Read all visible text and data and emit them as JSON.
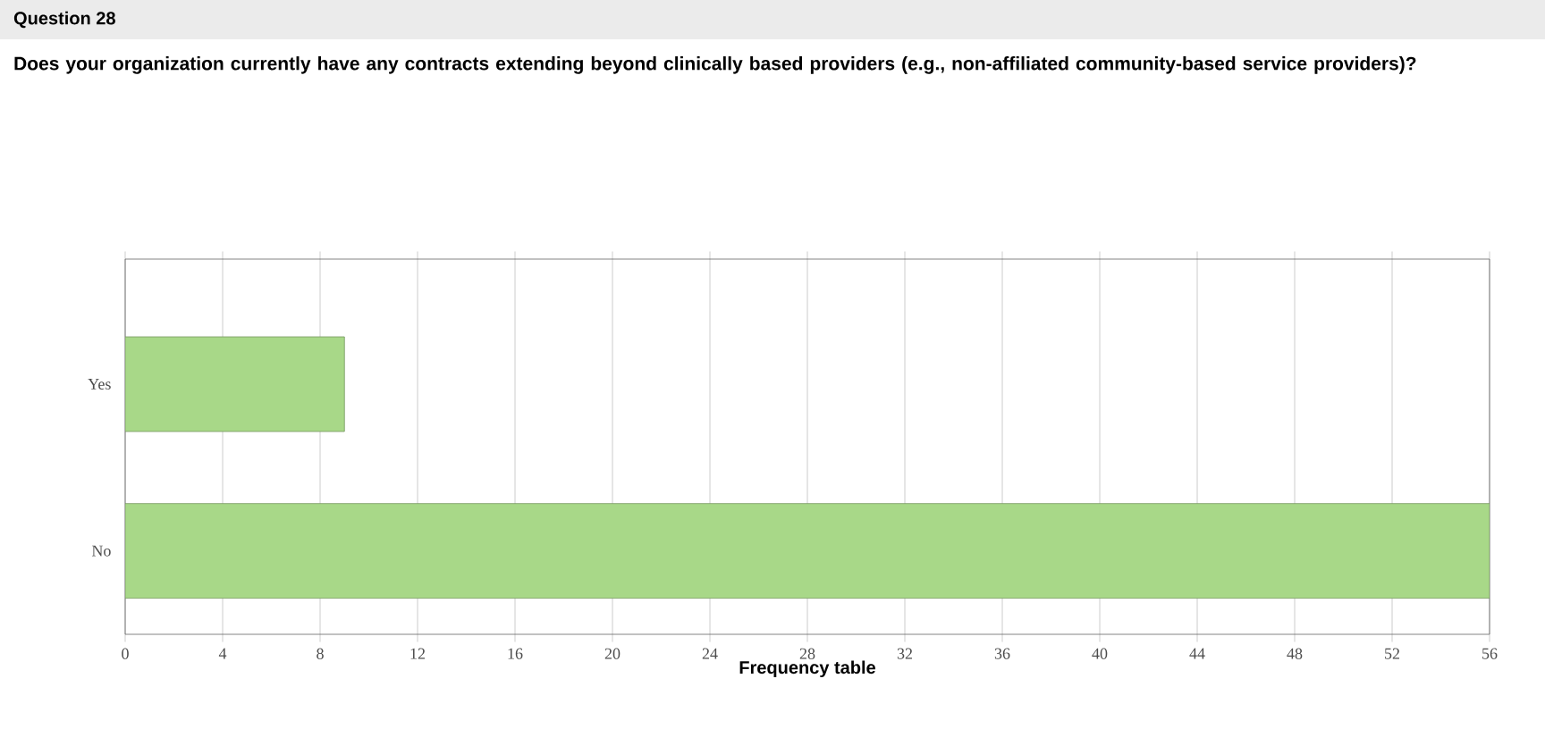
{
  "chart_data": {
    "type": "bar",
    "orientation": "horizontal",
    "title": "Question 28",
    "subtitle": "Does your organization currently have any contracts extending beyond clinically based providers (e.g., non-affiliated community-based service providers)?",
    "categories": [
      "Yes",
      "No"
    ],
    "values": [
      9,
      56
    ],
    "color": "#a8d888",
    "xlabel": "Frequency table",
    "xlim": [
      0,
      56
    ],
    "xticks": [
      0,
      4,
      8,
      12,
      16,
      20,
      24,
      28,
      32,
      36,
      40,
      44,
      48,
      52,
      56
    ],
    "grid": "x"
  }
}
